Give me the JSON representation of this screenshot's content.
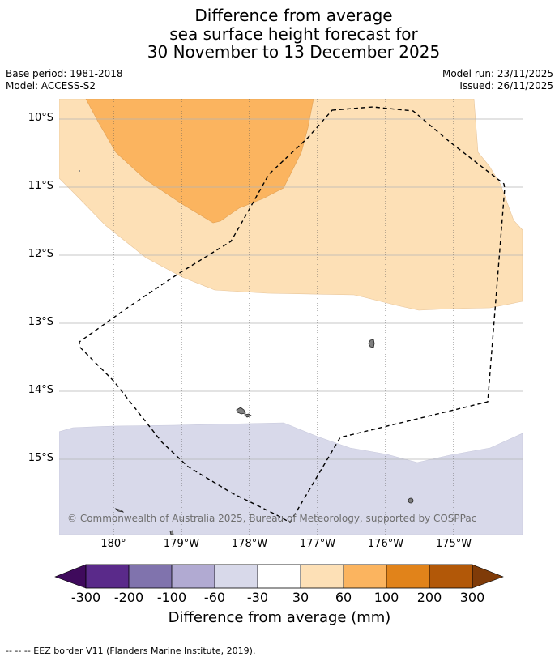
{
  "title": {
    "line1": "Difference from average",
    "line2": "sea surface height forecast for",
    "line3": "30 November to 13 December 2025"
  },
  "meta": {
    "base_period": "Base period: 1981-2018",
    "model": "Model: ACCESS-S2",
    "model_run": "Model run: 23/11/2025",
    "issued": "Issued: 26/11/2025"
  },
  "map": {
    "latitudes": [
      "10°S",
      "11°S",
      "12°S",
      "13°S",
      "14°S",
      "15°S"
    ],
    "longitudes": [
      "180°",
      "179°W",
      "178°W",
      "177°W",
      "176°W",
      "175°W"
    ],
    "copyright": "© Commonwealth of Australia 2025, Bureau of Meteorology, supported by COSPPac",
    "colors": {
      "band_30_60": "#fde0b6",
      "band_60_100": "#fbb45f",
      "band_neg60_neg30": "#d8d9ea",
      "ocean_neutral": "#ffffff",
      "land": "#808080"
    }
  },
  "colorbar": {
    "ticks": [
      "-300",
      "-200",
      "-100",
      "-60",
      "-30",
      "30",
      "60",
      "100",
      "200",
      "300"
    ],
    "colors": [
      "#3f0a5c",
      "#5a2a8a",
      "#8073ad",
      "#b1aad2",
      "#d8d9ea",
      "#ffffff",
      "#fde0b6",
      "#fbb45f",
      "#e1831a",
      "#b25808",
      "#7f3b08"
    ],
    "label": "Difference from average (mm)"
  },
  "footer": {
    "eez_legend": "--  --  -- EEZ border V11 (Flanders Marine Institute, 2019)."
  }
}
